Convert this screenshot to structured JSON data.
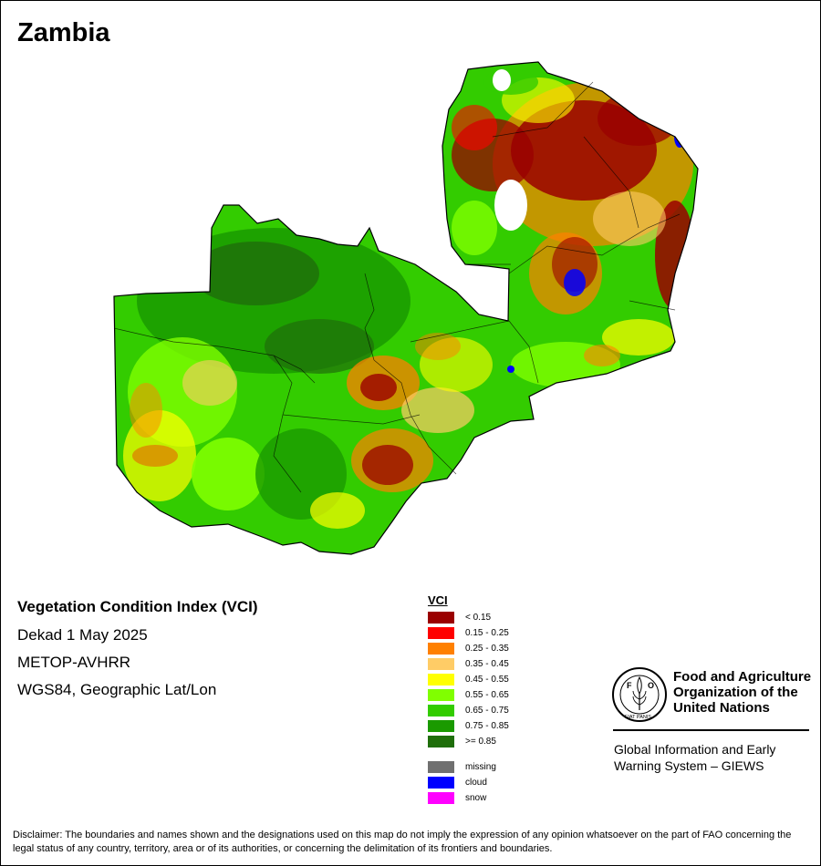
{
  "map": {
    "title": "Zambia",
    "index_title": "Vegetation Condition Index (VCI)",
    "period": "Dekad 1 May 2025",
    "sensor": "METOP-AVHRR",
    "projection": "WGS84, Geographic Lat/Lon"
  },
  "legend": {
    "title": "VCI",
    "classes": [
      {
        "label": "< 0.15",
        "color": "#9a0000"
      },
      {
        "label": "0.15 - 0.25",
        "color": "#ff0000"
      },
      {
        "label": "0.25 - 0.35",
        "color": "#ff8000"
      },
      {
        "label": "0.35 - 0.45",
        "color": "#ffcc66"
      },
      {
        "label": "0.45 - 0.55",
        "color": "#ffff00"
      },
      {
        "label": "0.55 - 0.65",
        "color": "#80ff00"
      },
      {
        "label": "0.65 - 0.75",
        "color": "#33cc00"
      },
      {
        "label": "0.75 - 0.85",
        "color": "#1a9a00"
      },
      {
        "label": ">= 0.85",
        "color": "#1f6e0a"
      }
    ],
    "special": [
      {
        "label": "missing",
        "color": "#707070"
      },
      {
        "label": "cloud",
        "color": "#0000ff"
      },
      {
        "label": "snow",
        "color": "#ff00ff"
      }
    ]
  },
  "organization": {
    "logo_text": "FAO",
    "logo_motto": "FIAT PANIS",
    "name": "Food and Agriculture Organization of the United Nations",
    "system": "Global Information and Early Warning System – GIEWS"
  },
  "disclaimer": "Disclaimer: The boundaries and names shown and the designations used on this map do not imply the expression of any opinion whatsoever on the part of FAO concerning the legal status of any country, territory, area or of its authorities, or concerning the delimitation of its frontiers and boundaries."
}
